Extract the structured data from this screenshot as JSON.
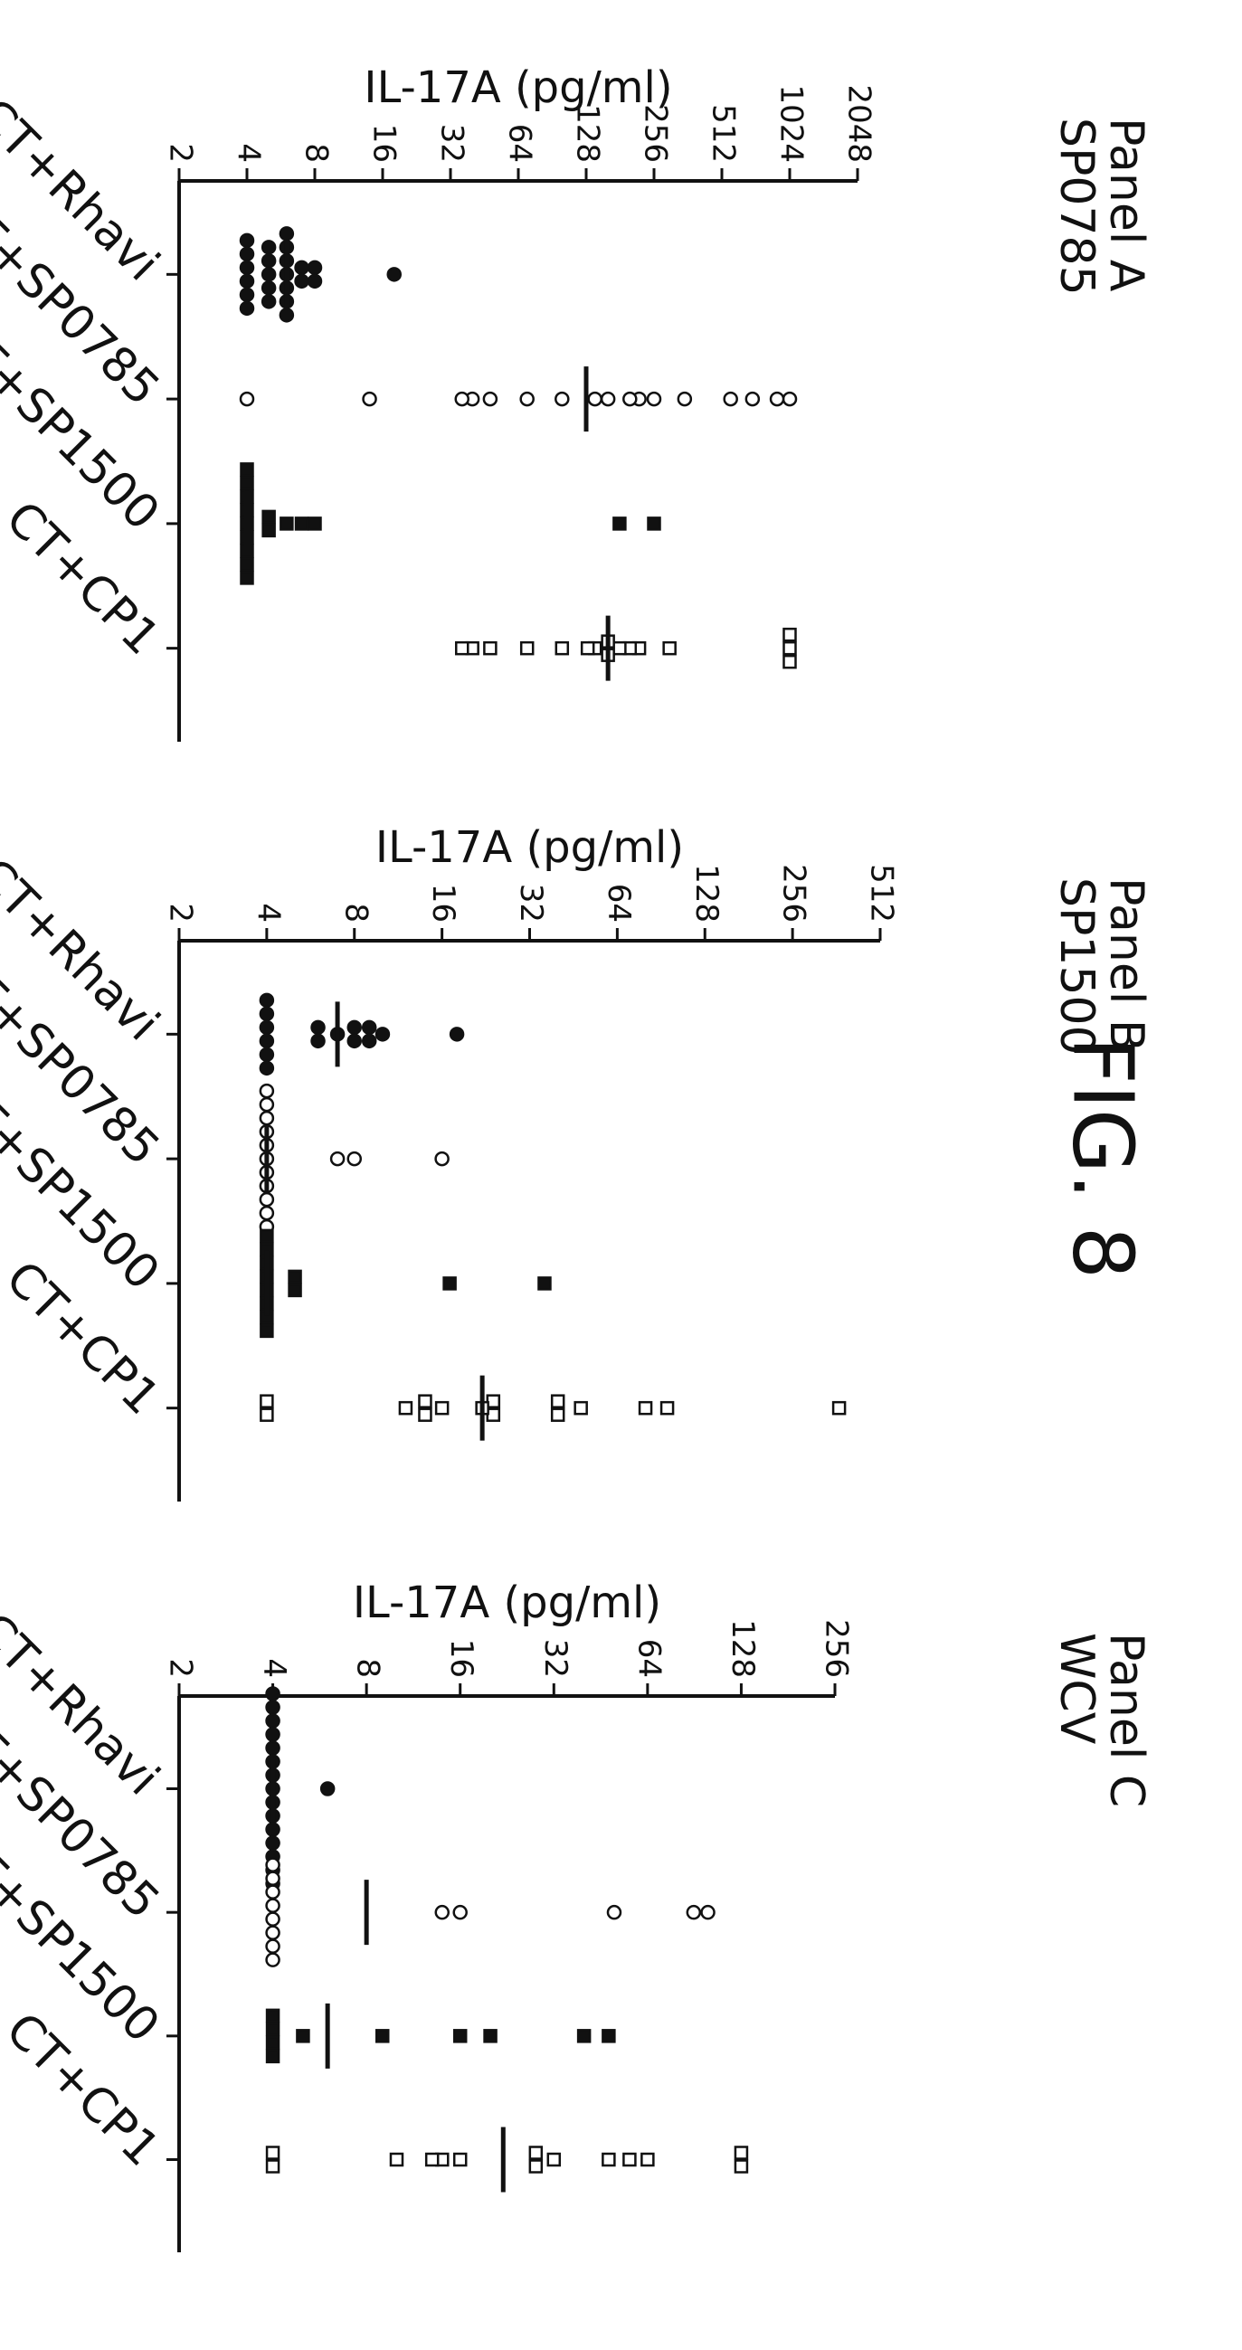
{
  "figure_label": "FIG. 8",
  "chart_data": [
    {
      "type": "scatter",
      "title": "Panel A",
      "subtitle": "SP0785",
      "ylabel": "IL-17A (pg/ml)",
      "y_scale": "log2",
      "ylim": [
        2,
        2048
      ],
      "yticks": [
        "2",
        "4",
        "8",
        "16",
        "32",
        "64",
        "128",
        "256",
        "512",
        "1024",
        "2048"
      ],
      "categories": [
        "CT+Rhavi",
        "CT+SP0785",
        "CT+SP1500",
        "CT+CP1"
      ],
      "series": [
        {
          "values": [
            18,
            8,
            8,
            7,
            7,
            6,
            6,
            6,
            6,
            6,
            6,
            6,
            5,
            5,
            5,
            5,
            5,
            4,
            4,
            4,
            4,
            4,
            4
          ],
          "marker": "filled-circle",
          "median": 6
        },
        {
          "values": [
            1024,
            900,
            700,
            560,
            350,
            256,
            220,
            200,
            160,
            140,
            100,
            70,
            48,
            40,
            36,
            14,
            4
          ],
          "marker": "open-circle",
          "median": 128
        },
        {
          "values": [
            256,
            180,
            8,
            7,
            6,
            5,
            5,
            4,
            4,
            4,
            4,
            4,
            4,
            4,
            4,
            4
          ],
          "marker": "filled-square",
          "median": 4
        },
        {
          "values": [
            1024,
            1024,
            1024,
            300,
            220,
            200,
            180,
            160,
            160,
            140,
            130,
            100,
            70,
            48,
            40,
            36
          ],
          "marker": "open-square",
          "median": 160
        }
      ]
    },
    {
      "type": "scatter",
      "title": "Panel B",
      "subtitle": "SP1500",
      "ylabel": "IL-17A (pg/ml)",
      "y_scale": "log2",
      "ylim": [
        2,
        512
      ],
      "yticks": [
        "2",
        "4",
        "8",
        "16",
        "32",
        "64",
        "128",
        "256",
        "512"
      ],
      "categories": [
        "CT+Rhavi",
        "CT+SP0785",
        "CT+SP1500",
        "CT+CP1"
      ],
      "series": [
        {
          "values": [
            18,
            10,
            9,
            9,
            8,
            8,
            7,
            6,
            6,
            4,
            4,
            4,
            4,
            4,
            4
          ],
          "marker": "filled-circle",
          "median": 7
        },
        {
          "values": [
            16,
            8,
            7,
            4,
            4,
            4,
            4,
            4,
            4,
            4,
            4,
            4,
            4,
            4
          ],
          "marker": "open-circle",
          "median": 4
        },
        {
          "values": [
            36,
            17,
            5,
            5,
            4,
            4,
            4,
            4,
            4,
            4,
            4,
            4
          ],
          "marker": "filled-square",
          "median": 4
        },
        {
          "values": [
            370,
            95,
            80,
            48,
            40,
            40,
            24,
            24,
            22,
            16,
            14,
            14,
            12,
            4,
            4
          ],
          "marker": "open-square",
          "median": 22
        }
      ]
    },
    {
      "type": "scatter",
      "title": "Panel C",
      "subtitle": "WCV",
      "ylabel": "IL-17A (pg/ml)",
      "y_scale": "log2",
      "ylim": [
        2,
        256
      ],
      "yticks": [
        "2",
        "4",
        "8",
        "16",
        "32",
        "64",
        "128",
        "256"
      ],
      "categories": [
        "CT+Rhavi",
        "CT+SP0785",
        "CT+SP1500",
        "CT+CP1"
      ],
      "series": [
        {
          "values": [
            6,
            4,
            4,
            4,
            4,
            4,
            4,
            4,
            4,
            4,
            4,
            4,
            4,
            4,
            4,
            4
          ],
          "marker": "filled-circle",
          "median": 4
        },
        {
          "values": [
            100,
            90,
            50,
            16,
            14,
            4,
            4,
            4,
            4,
            4,
            4,
            4,
            4
          ],
          "marker": "open-circle",
          "median": 8
        },
        {
          "values": [
            48,
            40,
            20,
            16,
            9,
            5,
            4,
            4,
            4,
            4
          ],
          "marker": "filled-square",
          "median": 6
        },
        {
          "values": [
            128,
            128,
            64,
            56,
            48,
            32,
            28,
            28,
            16,
            14,
            13,
            10,
            4,
            4
          ],
          "marker": "open-square",
          "median": 22
        }
      ]
    }
  ]
}
